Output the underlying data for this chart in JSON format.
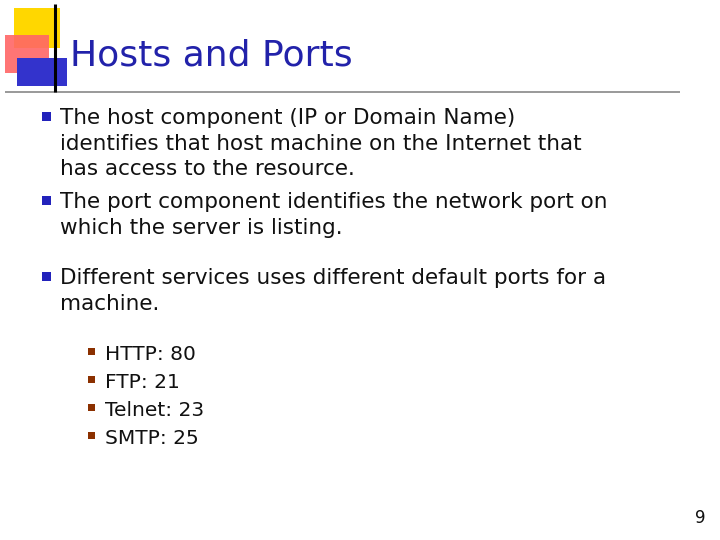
{
  "title": "Hosts and Ports",
  "title_color": "#2222AA",
  "title_fontsize": 26,
  "bg_color": "#FFFFFF",
  "slide_number": "9",
  "bullet_color": "#2222BB",
  "sub_bullet_color": "#8B3000",
  "text_color": "#111111",
  "bullet_fontsize": 15.5,
  "sub_bullet_fontsize": 14.5,
  "bullets": [
    "The host component (IP or Domain Name)\nidentifies that host machine on the Internet that\nhas access to the resource.",
    "The port component identifies the network port on\nwhich the server is listing.",
    "Different services uses different default ports for a\nmachine."
  ],
  "sub_bullets": [
    "HTTP: 80",
    "FTP: 21",
    "Telnet: 23",
    "SMTP: 25"
  ],
  "yellow_color": "#FFD700",
  "red_color": "#FF6666",
  "blue_color": "#3333CC"
}
